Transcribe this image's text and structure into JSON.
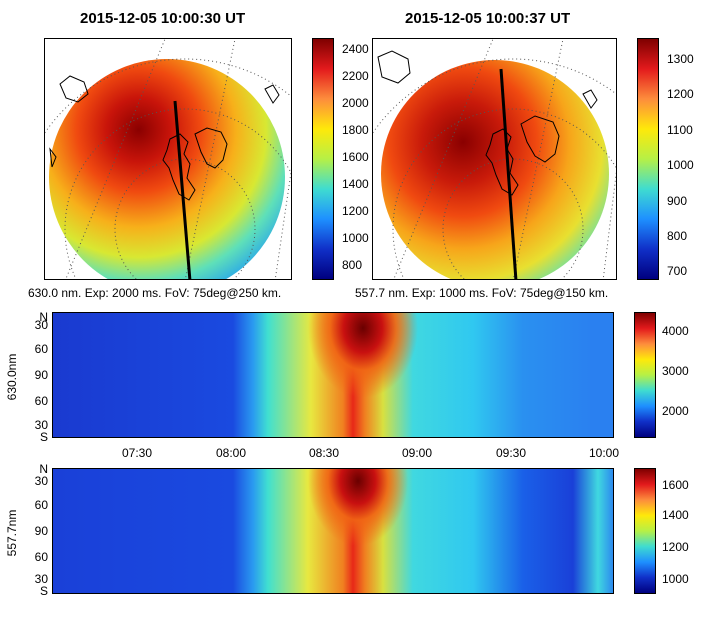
{
  "images": [
    {
      "title": "2015-12-05 10:00:30 UT",
      "caption": "630.0 nm. Exp: 2000 ms. FoV: 75deg@250 km.",
      "colorbar_ticks": [
        "2400",
        "2200",
        "2000",
        "1800",
        "1600",
        "1400",
        "1200",
        "1000",
        "800"
      ],
      "colorbar_range": [
        700,
        2500
      ]
    },
    {
      "title": "2015-12-05 10:00:37 UT",
      "caption": "557.7 nm. Exp: 1000 ms. FoV: 75deg@150 km.",
      "colorbar_ticks": [
        "1300",
        "1200",
        "1100",
        "1000",
        "900",
        "800",
        "700"
      ],
      "colorbar_range": [
        680,
        1360
      ]
    }
  ],
  "keograms": [
    {
      "ylabel": "630.0nm",
      "yticks": [
        "N",
        "30",
        "60",
        "90",
        "60",
        "30",
        "S"
      ],
      "colorbar_ticks": [
        "4000",
        "3000",
        "2000"
      ],
      "colorbar_range": [
        1400,
        4500
      ]
    },
    {
      "ylabel": "557.7nm",
      "yticks": [
        "N",
        "30",
        "60",
        "90",
        "60",
        "30",
        "S"
      ],
      "colorbar_ticks": [
        "1600",
        "1400",
        "1200",
        "1000"
      ],
      "colorbar_range": [
        900,
        1700
      ]
    }
  ],
  "time_axis": {
    "ticks": [
      "07:30",
      "08:00",
      "08:30",
      "09:00",
      "09:30",
      "10:00"
    ]
  },
  "chart_data": [
    {
      "type": "heatmap",
      "title": "2015-12-05 10:00:30 UT",
      "colorbar_range": [
        700,
        2500
      ]
    },
    {
      "type": "heatmap",
      "title": "2015-12-05 10:00:37 UT",
      "colorbar_range": [
        680,
        1360
      ]
    },
    {
      "type": "heatmap",
      "ylabel": "630.0nm",
      "x_ticks": [
        "07:30",
        "08:00",
        "08:30",
        "09:00",
        "09:30",
        "10:00"
      ],
      "y_ticks": [
        "N",
        "30",
        "60",
        "90",
        "60",
        "30",
        "S"
      ],
      "colorbar_range": [
        1400,
        4500
      ]
    },
    {
      "type": "heatmap",
      "ylabel": "557.7nm",
      "x_ticks": [
        "07:30",
        "08:00",
        "08:30",
        "09:00",
        "09:30",
        "10:00"
      ],
      "y_ticks": [
        "N",
        "30",
        "60",
        "90",
        "60",
        "30",
        "S"
      ],
      "colorbar_range": [
        900,
        1700
      ]
    }
  ]
}
